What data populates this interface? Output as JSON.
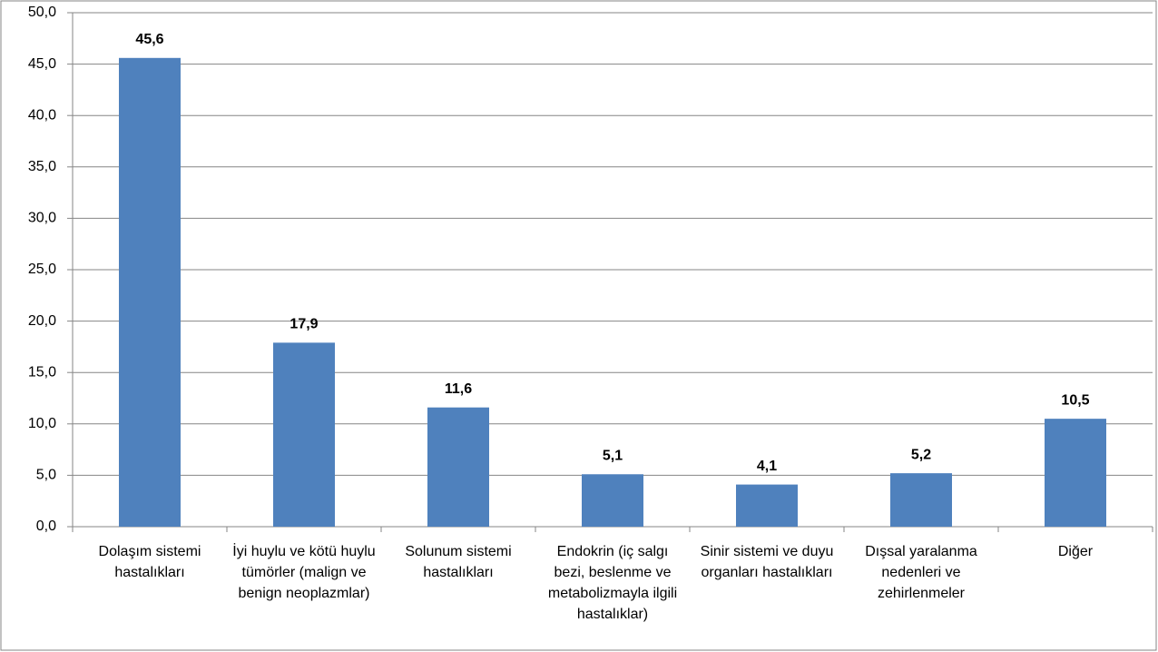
{
  "chart_data": {
    "type": "bar",
    "categories": [
      "Dolaşım sistemi hastalıkları",
      "İyi huylu ve kötü huylu tümörler (malign ve benign neoplazmlar)",
      "Solunum sistemi hastalıkları",
      "Endokrin (iç salgı bezi, beslenme ve metabolizmayla ilgili hastalıklar)",
      "Sinir sistemi ve duyu organları hastalıkları",
      "Dışsal yaralanma nedenleri ve zehirlenmeler",
      "Diğer"
    ],
    "values": [
      45.6,
      17.9,
      11.6,
      5.1,
      4.1,
      5.2,
      10.5
    ],
    "value_labels": [
      "45,6",
      "17,9",
      "11,6",
      "5,1",
      "4,1",
      "5,2",
      "10,5"
    ],
    "color": "#4f81bd",
    "ylim": [
      0,
      50
    ],
    "yticks": [
      {
        "value": 0,
        "label": "0,0"
      },
      {
        "value": 5,
        "label": "5,0"
      },
      {
        "value": 10,
        "label": "10,0"
      },
      {
        "value": 15,
        "label": "15,0"
      },
      {
        "value": 20,
        "label": "20,0"
      },
      {
        "value": 25,
        "label": "25,0"
      },
      {
        "value": 30,
        "label": "30,0"
      },
      {
        "value": 35,
        "label": "35,0"
      },
      {
        "value": 40,
        "label": "40,0"
      },
      {
        "value": 45,
        "label": "45,0"
      },
      {
        "value": 50,
        "label": "50,0"
      }
    ],
    "grid": true
  }
}
